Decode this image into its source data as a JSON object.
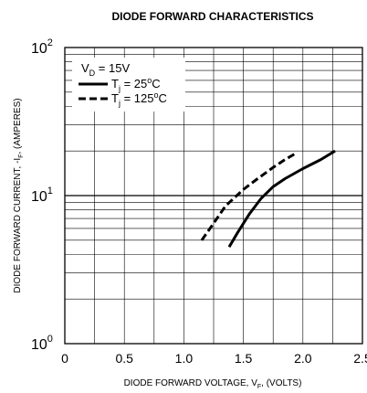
{
  "chart_data": {
    "type": "line",
    "title": "DIODE FORWARD CHARACTERISTICS",
    "xlabel": "DIODE FORWARD VOLTAGE, V",
    "xlabel_sub": "F",
    "xlabel_suffix": ", (VOLTS)",
    "ylabel": "DIODE FORWARD CURRENT, -I",
    "ylabel_sub": "F",
    "ylabel_suffix": ", (AMPERES)",
    "xlim": [
      0,
      2.5
    ],
    "ylim": [
      1,
      100
    ],
    "yscale": "log",
    "grid": true,
    "x_ticks": [
      {
        "value": 0,
        "label": "0"
      },
      {
        "value": 0.5,
        "label": "0.5"
      },
      {
        "value": 1.0,
        "label": "1.0"
      },
      {
        "value": 1.5,
        "label": "1.5"
      },
      {
        "value": 2.0,
        "label": "2.0"
      },
      {
        "value": 2.5,
        "label": "2.5"
      }
    ],
    "y_ticks": [
      {
        "value": 1,
        "base": "10",
        "exp": "0"
      },
      {
        "value": 10,
        "base": "10",
        "exp": "1"
      },
      {
        "value": 100,
        "base": "10",
        "exp": "2"
      }
    ],
    "legend": {
      "placement": "top-left",
      "header": {
        "main": "V",
        "sub": "D",
        "rest": " = 15V"
      },
      "entries": [
        {
          "main": "T",
          "sub": "j",
          "rest": " = 25",
          "sup": "o",
          "unit": "C",
          "style": "solid"
        },
        {
          "main": "T",
          "sub": "j",
          "rest": " = 125",
          "sup": "o",
          "unit": "C",
          "style": "dashed"
        }
      ]
    },
    "series": [
      {
        "label": "Tj = 25oC",
        "style": "solid",
        "x": [
          1.38,
          1.45,
          1.55,
          1.65,
          1.75,
          1.85,
          2.0,
          2.15,
          2.27
        ],
        "y": [
          4.5,
          5.6,
          7.5,
          9.6,
          11.5,
          13.0,
          15.2,
          17.5,
          20.0
        ]
      },
      {
        "label": "Tj = 125oC",
        "style": "dashed",
        "x": [
          1.15,
          1.25,
          1.35,
          1.5,
          1.62,
          1.75,
          1.85,
          1.95
        ],
        "y": [
          5.0,
          6.5,
          8.5,
          11.0,
          13.0,
          15.5,
          17.5,
          19.5
        ]
      }
    ]
  }
}
